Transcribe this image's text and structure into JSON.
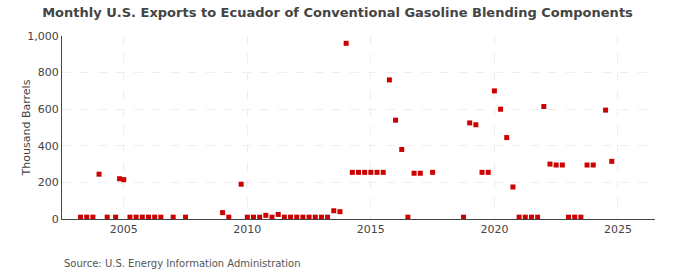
{
  "chart_data": {
    "type": "scatter",
    "title": "Monthly U.S. Exports to Ecuador of Conventional Gasoline Blending Components",
    "ylabel": "Thousand Barrels",
    "annotations": [
      "Source: U.S. Energy Information Administration"
    ],
    "color": "#cc0000",
    "marker": "square",
    "grid": true,
    "xlim": [
      2002.5,
      2026.5
    ],
    "xticks": [
      2005,
      2010,
      2015,
      2020,
      2025
    ],
    "ylim": [
      0,
      1000
    ],
    "yticks": [
      0,
      200,
      400,
      600,
      800,
      {
        "value": 1000,
        "label": "1,000"
      }
    ],
    "x": [
      2003.25,
      2003.5,
      2003.75,
      2004.0,
      2004.33,
      2004.67,
      2004.83,
      2005.0,
      2005.25,
      2005.5,
      2005.75,
      2006.0,
      2006.25,
      2006.5,
      2007.0,
      2007.5,
      2009.0,
      2009.25,
      2009.75,
      2010.0,
      2010.25,
      2010.5,
      2010.75,
      2011.0,
      2011.25,
      2011.5,
      2011.75,
      2012.0,
      2012.25,
      2012.5,
      2012.75,
      2013.0,
      2013.25,
      2013.5,
      2013.75,
      2014.0,
      2014.25,
      2014.5,
      2014.75,
      2015.0,
      2015.25,
      2015.5,
      2015.75,
      2016.0,
      2016.25,
      2016.5,
      2016.75,
      2017.0,
      2017.5,
      2018.75,
      2019.0,
      2019.25,
      2019.5,
      2019.75,
      2020.0,
      2020.25,
      2020.5,
      2020.75,
      2021.0,
      2021.25,
      2021.5,
      2021.75,
      2022.0,
      2022.25,
      2022.5,
      2022.75,
      2023.0,
      2023.25,
      2023.5,
      2023.75,
      2024.0,
      2024.5,
      2024.75
    ],
    "values": [
      10,
      10,
      10,
      245,
      10,
      10,
      220,
      215,
      10,
      10,
      10,
      10,
      10,
      10,
      10,
      10,
      35,
      10,
      190,
      10,
      10,
      10,
      20,
      10,
      25,
      10,
      10,
      10,
      10,
      10,
      10,
      10,
      10,
      45,
      40,
      960,
      255,
      255,
      255,
      255,
      255,
      255,
      760,
      540,
      380,
      10,
      250,
      250,
      255,
      10,
      525,
      515,
      255,
      255,
      700,
      600,
      445,
      175,
      10,
      10,
      10,
      10,
      615,
      300,
      295,
      295,
      10,
      10,
      10,
      295,
      295,
      595,
      315
    ]
  }
}
